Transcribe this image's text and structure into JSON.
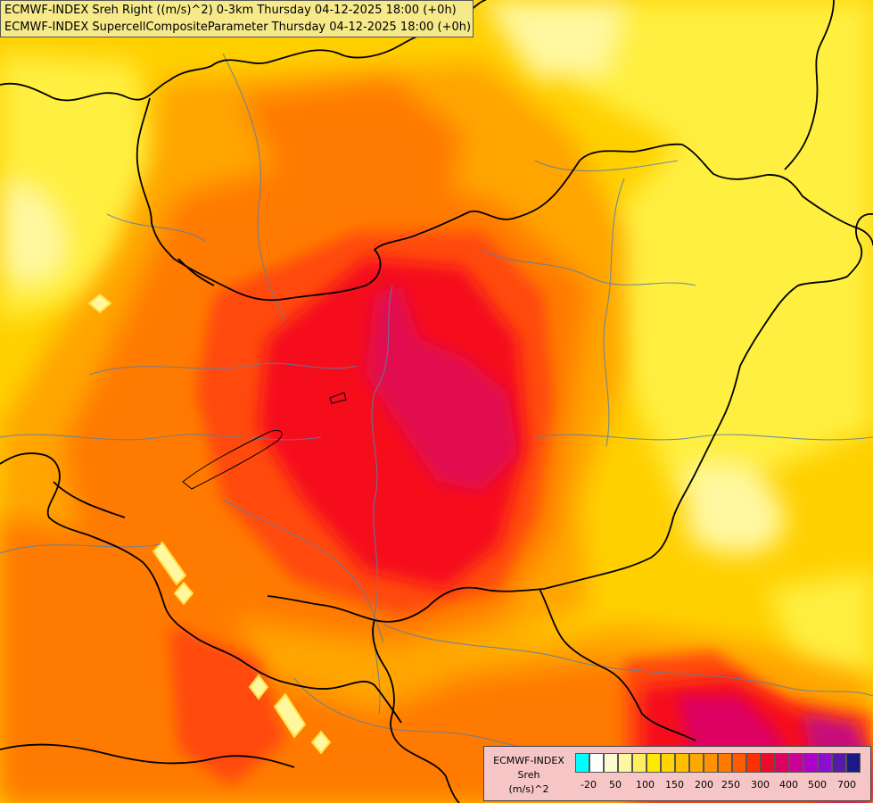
{
  "title_lines": [
    "ECMWF-INDEX Sreh Right ((m/s)^2) 0-3km Thursday 04-12-2025 18:00 (+0h)",
    "ECMWF-INDEX SupercellCompositeParameter Thursday 04-12-2025 18:00 (+0h)"
  ],
  "legend": {
    "title": [
      "ECMWF-INDEX",
      "Sreh",
      "(m/s)^2"
    ],
    "ticks": [
      "-20",
      "50",
      "100",
      "150",
      "200",
      "250",
      "300",
      "400",
      "500",
      "700"
    ],
    "colors": [
      "#00ffff",
      "#ffffff",
      "#fffbd0",
      "#fff7a0",
      "#ffef60",
      "#ffe800",
      "#ffd400",
      "#ffbf00",
      "#ffa800",
      "#ff9000",
      "#ff7800",
      "#ff5a00",
      "#ff3000",
      "#ee0a2a",
      "#dd0060",
      "#cc0099",
      "#b100cc",
      "#8a10d0",
      "#5a1aa8",
      "#1a1a86"
    ]
  },
  "palette": {
    "base": "#ffd000",
    "light_yellow": "#ffef40",
    "pale": "#fff8a0",
    "orange": "#ffa500",
    "dark_orange": "#ff7a00",
    "red_orange": "#ff4a10",
    "red": "#f5101e",
    "crimson": "#e10a50",
    "magenta": "#c8107a",
    "border": "#000000",
    "river": "#5a7fa8"
  }
}
